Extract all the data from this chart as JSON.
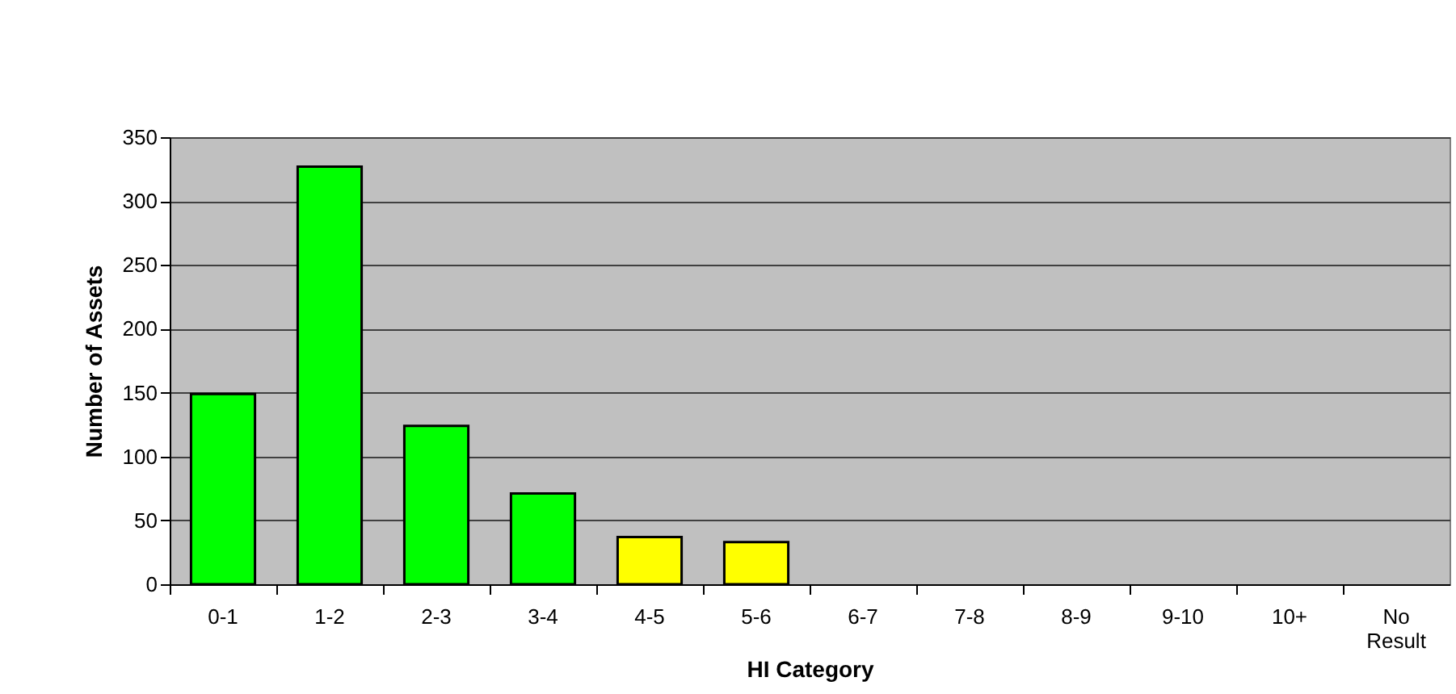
{
  "chart_data": {
    "type": "bar",
    "xlabel": "HI Category",
    "ylabel": "Number of Assets",
    "categories": [
      "0-1",
      "1-2",
      "2-3",
      "3-4",
      "4-5",
      "5-6",
      "6-7",
      "7-8",
      "8-9",
      "9-10",
      "10+",
      "No Result"
    ],
    "values": [
      149,
      327,
      124,
      71,
      37,
      33,
      null,
      null,
      null,
      null,
      null,
      null
    ],
    "colors": [
      "#00ff00",
      "#00ff00",
      "#00ff00",
      "#00ff00",
      "#ffff00",
      "#ffff00",
      null,
      null,
      null,
      null,
      null,
      null
    ],
    "ylim": [
      0,
      350
    ],
    "yticks": [
      0,
      50,
      100,
      150,
      200,
      250,
      300,
      350
    ],
    "grid": "y",
    "legend": false
  }
}
